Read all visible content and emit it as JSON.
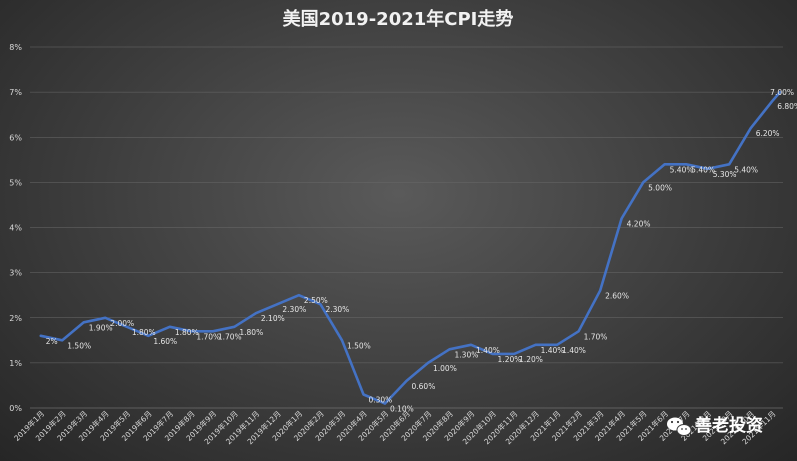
{
  "chart_data": {
    "type": "line",
    "title": "美国2019-2021年CPI走势",
    "xlabel": "",
    "ylabel": "",
    "ylim": [
      0,
      8
    ],
    "yticks": [
      "0%",
      "1%",
      "2%",
      "3%",
      "4%",
      "5%",
      "6%",
      "7%",
      "8%"
    ],
    "grid": true,
    "legend": "none",
    "line_color": "#4472c4",
    "categories": [
      "2019年1月",
      "2019年2月",
      "2019年3月",
      "2019年4月",
      "2019年5月",
      "2019年6月",
      "2019年7月",
      "2019年8月",
      "2019年9月",
      "2019年10月",
      "2019年11月",
      "2019年12月",
      "2020年1月",
      "2020年2月",
      "2020年3月",
      "2020年4月",
      "2020年5月",
      "2020年6月",
      "2020年7月",
      "2020年8月",
      "2020年9月",
      "2020年10月",
      "2020年11月",
      "2020年12月",
      "2021年1月",
      "2021年2月",
      "2021年3月",
      "2021年4月",
      "2021年5月",
      "2021年6月",
      "2021年7月",
      "2021年8月",
      "2021年9月",
      "2021年10月",
      "2021年11月"
    ],
    "series": [
      {
        "values": [
          1.6,
          1.5,
          1.9,
          2.0,
          1.8,
          1.6,
          1.8,
          1.7,
          1.7,
          1.8,
          2.1,
          2.3,
          2.5,
          2.3,
          1.5,
          0.3,
          0.1,
          0.6,
          1.0,
          1.3,
          1.4,
          1.2,
          1.2,
          1.4,
          1.4,
          1.7,
          2.6,
          4.2,
          5.0,
          5.4,
          5.4,
          5.3,
          5.4,
          6.2,
          6.8
        ],
        "data_labels": [
          "2%",
          "1.50%",
          "1.90%",
          "2.00%",
          "1.80%",
          "1.60%",
          "1.80%",
          "1.70%",
          "1.70%",
          "1.80%",
          "2.10%",
          "2.30%",
          "2.50%",
          "2.30%",
          "1.50%",
          "0.30%",
          "0.10%",
          "0.60%",
          "1.00%",
          "1.30%",
          "1.40%",
          "1.20%",
          "1.20%",
          "1.40%",
          "1.40%",
          "1.70%",
          "2.60%",
          "4.20%",
          "5.00%",
          "5.40%",
          "5.40%",
          "5.30%",
          "5.40%",
          "6.20%",
          "6.80%"
        ]
      }
    ],
    "annotations": [
      {
        "text": "7.00%",
        "y": 7.0
      }
    ]
  },
  "watermark": {
    "text": "善老投资",
    "icon": "wechat-icon"
  }
}
